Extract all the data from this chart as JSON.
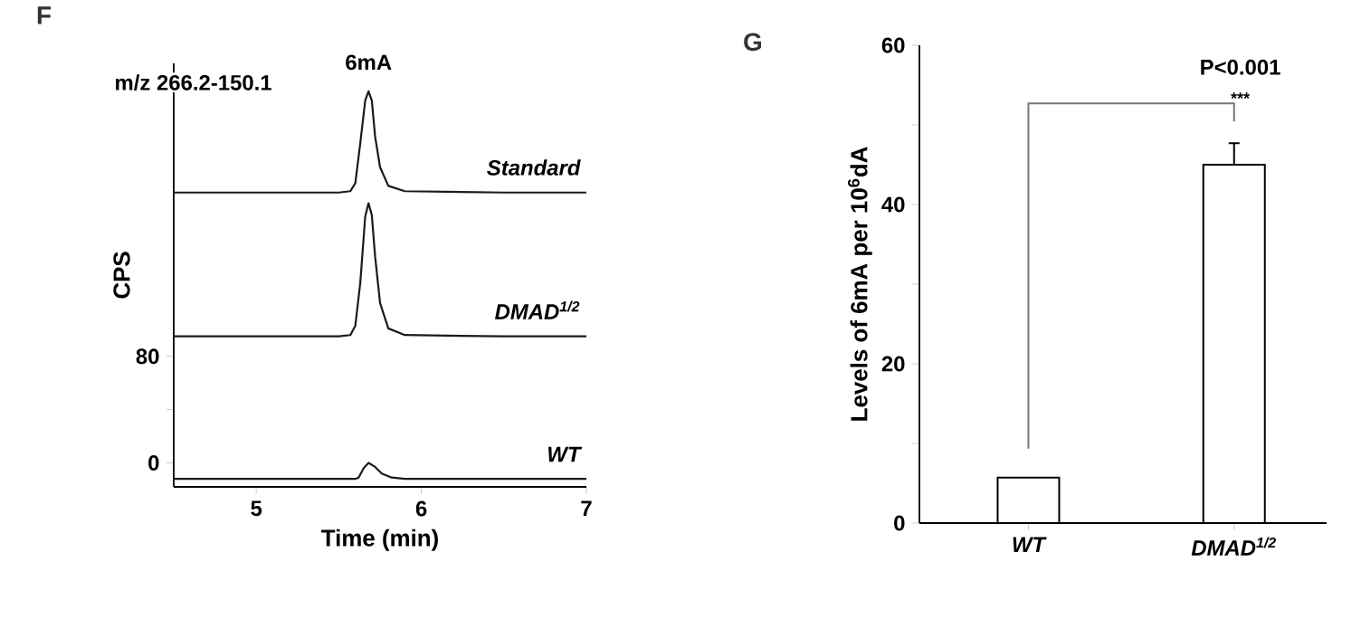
{
  "chart_data": [
    {
      "type": "line",
      "xlabel": "Time (min)",
      "ylabel": "CPS",
      "xlim": [
        4.5,
        7
      ],
      "ylim": [
        -18,
        300
      ],
      "xticks": [
        5,
        6,
        7
      ],
      "yticks": [
        0,
        {
          "value": 40,
          "label": null
        },
        80
      ],
      "annotations": [
        "F",
        {
          "text": "6mA",
          "x": 5.68,
          "y": 279
        },
        "m/z 266.2-150.1"
      ],
      "series": [
        {
          "name": "Standard",
          "color": "#1a1a1a",
          "x": [
            4.5,
            5.0,
            5.5,
            5.57,
            5.6,
            5.63,
            5.66,
            5.68,
            5.7,
            5.72,
            5.75,
            5.8,
            5.9,
            6.5,
            7.0
          ],
          "values": [
            203,
            203,
            203,
            204,
            210,
            240,
            272,
            279,
            272,
            245,
            222,
            208,
            204,
            203,
            203
          ]
        },
        {
          "name": "DMAD$^{1/2}$",
          "color": "#1a1a1a",
          "x": [
            4.5,
            5.0,
            5.5,
            5.57,
            5.6,
            5.63,
            5.66,
            5.68,
            5.7,
            5.72,
            5.75,
            5.8,
            5.9,
            6.5,
            7.0
          ],
          "values": [
            95,
            95,
            95,
            96,
            103,
            135,
            185,
            195,
            186,
            155,
            120,
            101,
            96,
            95,
            95
          ]
        },
        {
          "name": "WT",
          "color": "#1a1a1a",
          "x": [
            4.5,
            5.0,
            5.5,
            5.6,
            5.62,
            5.65,
            5.68,
            5.72,
            5.76,
            5.82,
            5.9,
            6.5,
            7.0
          ],
          "values": [
            -12,
            -12,
            -12,
            -12,
            -11,
            -4,
            0,
            -3,
            -8,
            -11,
            -12,
            -12,
            -12
          ]
        }
      ]
    },
    {
      "type": "bar",
      "ylabel": "Levels of 6mA per 10$^{6}$dA",
      "categories": [
        "WT",
        "DMAD$^{1/2}$"
      ],
      "ylim": [
        0,
        60
      ],
      "yticks": [
        0,
        {
          "value": 10,
          "label": null
        },
        20,
        {
          "value": 30,
          "label": null
        },
        40,
        {
          "value": 50,
          "label": null
        },
        60
      ],
      "annotations": [
        "G",
        "P<0.001",
        "***"
      ],
      "series": [
        {
          "color": "#ffffff",
          "values": [
            5.7,
            45.0
          ],
          "errors": [
            null,
            2.7
          ]
        }
      ]
    }
  ]
}
